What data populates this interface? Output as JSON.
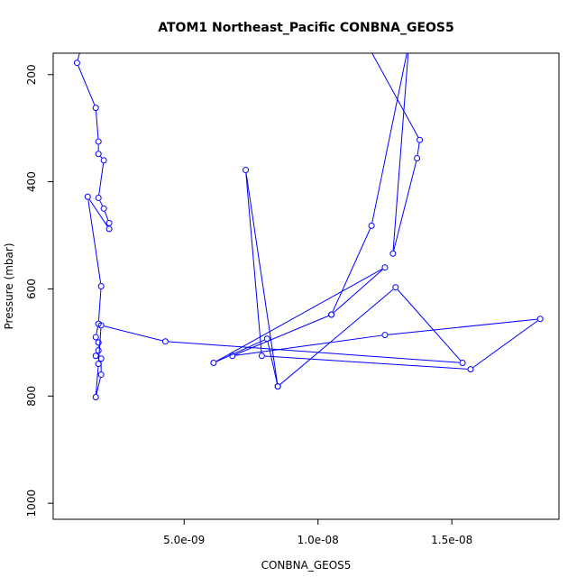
{
  "chart_data": {
    "type": "line",
    "title": "ATOM1 Northeast_Pacific CONBNA_GEOS5",
    "xlabel": "CONBNA_GEOS5",
    "ylabel": "Pressure (mbar)",
    "xlim": [
      1.1e-10,
      1.9e-08
    ],
    "ylim": [
      1030,
      160
    ],
    "y_reversed": true,
    "x_ticks": [
      5e-09,
      1e-08,
      1.5e-08
    ],
    "x_tick_labels": [
      "5.0e-09",
      "1.0e-08",
      "1.5e-08"
    ],
    "y_ticks": [
      200,
      400,
      600,
      800,
      1000
    ],
    "y_tick_labels": [
      "200",
      "400",
      "600",
      "800",
      "1000"
    ],
    "series_color": "#0000ff",
    "series": [
      {
        "marker": "open-circle",
        "points": [
          {
            "x": 1.2e-09,
            "y": 140
          },
          {
            "x": 1e-09,
            "y": 178
          },
          {
            "x": 1.7e-09,
            "y": 262
          },
          {
            "x": 1.8e-09,
            "y": 325
          },
          {
            "x": 1.8e-09,
            "y": 348
          },
          {
            "x": 2e-09,
            "y": 360
          },
          {
            "x": 1.8e-09,
            "y": 430
          },
          {
            "x": 2e-09,
            "y": 450
          },
          {
            "x": 2.2e-09,
            "y": 477
          },
          {
            "x": 2.2e-09,
            "y": 488
          },
          {
            "x": 1.4e-09,
            "y": 428
          },
          {
            "x": 1.9e-09,
            "y": 595
          },
          {
            "x": 1.8e-09,
            "y": 665
          },
          {
            "x": 1.7e-09,
            "y": 690
          },
          {
            "x": 1.8e-09,
            "y": 700
          },
          {
            "x": 1.8e-09,
            "y": 715
          },
          {
            "x": 1.7e-09,
            "y": 725
          },
          {
            "x": 1.9e-09,
            "y": 730
          },
          {
            "x": 1.9e-09,
            "y": 760
          },
          {
            "x": 1.7e-09,
            "y": 802
          },
          {
            "x": 1.8e-09,
            "y": 740
          },
          {
            "x": 1.9e-09,
            "y": 668
          },
          {
            "x": 4.3e-09,
            "y": 698
          },
          {
            "x": 1.54e-08,
            "y": 738
          },
          {
            "x": 1.29e-08,
            "y": 597
          },
          {
            "x": 8.5e-09,
            "y": 782
          },
          {
            "x": 8.1e-09,
            "y": 693
          },
          {
            "x": 6.1e-09,
            "y": 738
          },
          {
            "x": 1.25e-08,
            "y": 560
          },
          {
            "x": 1.05e-08,
            "y": 648
          },
          {
            "x": 6.8e-09,
            "y": 725
          },
          {
            "x": 1.25e-08,
            "y": 686
          },
          {
            "x": 1.83e-08,
            "y": 656
          },
          {
            "x": 1.57e-08,
            "y": 750
          },
          {
            "x": 7.9e-09,
            "y": 725
          },
          {
            "x": 7.3e-09,
            "y": 378
          },
          {
            "x": 8.5e-09,
            "y": 782
          }
        ]
      },
      {
        "marker": "open-circle",
        "points": [
          {
            "x": 1.18e-08,
            "y": 140
          },
          {
            "x": 1.38e-08,
            "y": 322
          },
          {
            "x": 1.37e-08,
            "y": 356
          },
          {
            "x": 1.28e-08,
            "y": 534
          },
          {
            "x": 1.34e-08,
            "y": 140
          },
          {
            "x": 1.2e-08,
            "y": 482
          },
          {
            "x": 1.05e-08,
            "y": 648
          }
        ]
      }
    ]
  }
}
